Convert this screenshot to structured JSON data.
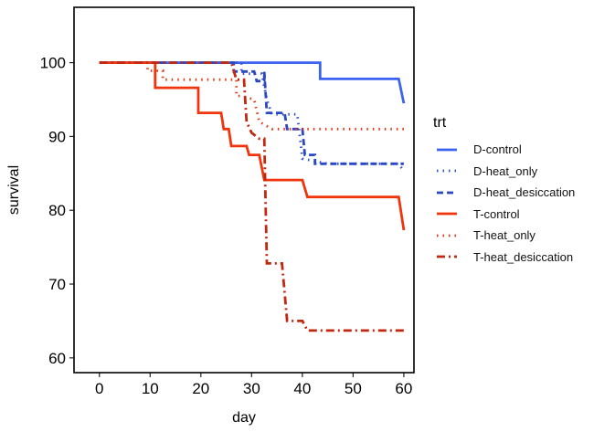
{
  "chart_data": {
    "type": "line",
    "title": "",
    "xlabel": "day",
    "ylabel": "survival",
    "xlim": [
      -5,
      62
    ],
    "ylim": [
      58,
      107.5
    ],
    "x_ticks": [
      "0",
      "10",
      "20",
      "30",
      "40",
      "50",
      "60"
    ],
    "y_ticks": [
      "60",
      "70",
      "80",
      "90",
      "100"
    ],
    "grid": false,
    "legend": {
      "title": "trt",
      "placement": "right",
      "entries": [
        "D-control",
        "D-heat_only",
        "D-heat_desiccation",
        "T-control",
        "T-heat_only",
        "T-heat_desiccation"
      ]
    },
    "series": [
      {
        "name": "D-control",
        "color": "#3a63f0",
        "dash": "solid",
        "points": [
          [
            0,
            100
          ],
          [
            43.5,
            100
          ],
          [
            43.5,
            97.8
          ],
          [
            59,
            97.8
          ],
          [
            60,
            94.5
          ]
        ]
      },
      {
        "name": "D-heat_only",
        "color": "#3350d0",
        "dash": "dotted",
        "points": [
          [
            0,
            100
          ],
          [
            28,
            100
          ],
          [
            28,
            98.5
          ],
          [
            32,
            98.5
          ],
          [
            33,
            95
          ],
          [
            34,
            93
          ],
          [
            39,
            93
          ],
          [
            40,
            87
          ],
          [
            45,
            86.3
          ],
          [
            59,
            86.3
          ],
          [
            60,
            85.3
          ]
        ]
      },
      {
        "name": "D-heat_desiccation",
        "color": "#2a48c4",
        "dash": "dashed",
        "points": [
          [
            0,
            100
          ],
          [
            26.5,
            100
          ],
          [
            26.5,
            98.8
          ],
          [
            30.5,
            98.8
          ],
          [
            31,
            97.5
          ],
          [
            32.5,
            97.5
          ],
          [
            32.5,
            98.8
          ],
          [
            33,
            93.2
          ],
          [
            36.5,
            93.2
          ],
          [
            37,
            91
          ],
          [
            40,
            91
          ],
          [
            40.5,
            87.5
          ],
          [
            42.5,
            87.5
          ],
          [
            42.5,
            86.3
          ],
          [
            60,
            86.3
          ]
        ]
      },
      {
        "name": "T-control",
        "color": "#f0340c",
        "dash": "solid",
        "points": [
          [
            0,
            100
          ],
          [
            11,
            100
          ],
          [
            11,
            96.6
          ],
          [
            19.5,
            96.6
          ],
          [
            19.5,
            93.2
          ],
          [
            24,
            93.2
          ],
          [
            24.5,
            91
          ],
          [
            25.5,
            91
          ],
          [
            26,
            88.7
          ],
          [
            29,
            88.7
          ],
          [
            29.5,
            87.5
          ],
          [
            31.5,
            87.5
          ],
          [
            32.5,
            84.1
          ],
          [
            40,
            84.1
          ],
          [
            41,
            81.8
          ],
          [
            59,
            81.8
          ],
          [
            60,
            77.3
          ]
        ]
      },
      {
        "name": "T-heat_only",
        "color": "#e53410",
        "dash": "dotted",
        "points": [
          [
            0,
            100
          ],
          [
            9.5,
            100
          ],
          [
            9.5,
            98.9
          ],
          [
            12.5,
            98.9
          ],
          [
            12.5,
            97.7
          ],
          [
            27,
            97.7
          ],
          [
            27,
            95.5
          ],
          [
            28,
            95.5
          ],
          [
            30.5,
            95
          ],
          [
            31.5,
            92
          ],
          [
            34,
            91
          ],
          [
            60,
            91
          ]
        ]
      },
      {
        "name": "T-heat_desiccation",
        "color": "#c22810",
        "dash": "dashdot",
        "points": [
          [
            0,
            100
          ],
          [
            26,
            100
          ],
          [
            27,
            97.7
          ],
          [
            28.5,
            97.7
          ],
          [
            29,
            92
          ],
          [
            30,
            90.5
          ],
          [
            31.5,
            89.7
          ],
          [
            32.5,
            89.7
          ],
          [
            33,
            72.8
          ],
          [
            36,
            72.8
          ],
          [
            37,
            65
          ],
          [
            40,
            65
          ],
          [
            41,
            63.7
          ],
          [
            60,
            63.7
          ]
        ]
      }
    ]
  }
}
